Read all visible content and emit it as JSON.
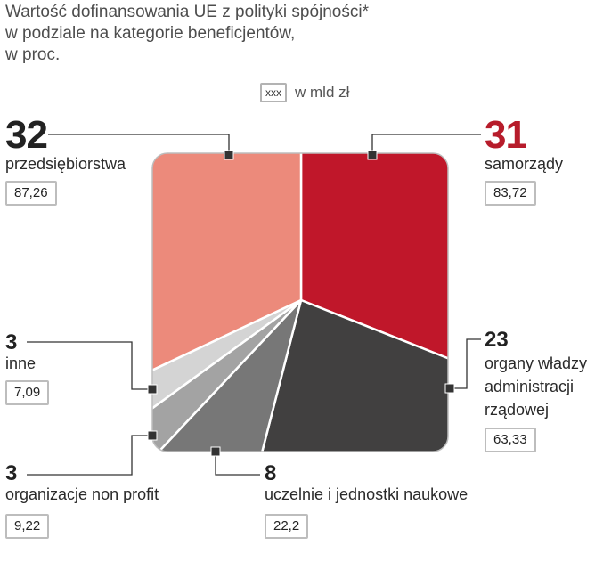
{
  "title_lines": [
    "Wartość dofinansowania UE z polityki spójności*",
    "w podziale na kategorie beneficjentów,",
    "w proc."
  ],
  "legend": {
    "box": "xxx",
    "label": "w mld zł"
  },
  "chart_data": {
    "type": "pie",
    "unit": "w proc.",
    "value_unit": "w mld zł",
    "slices": [
      {
        "label": "samorządy",
        "percent": 31,
        "value": "83,72",
        "color": "#c0172a"
      },
      {
        "label": "organy władzy administracji rządowej",
        "label_lines": [
          "organy władzy",
          "administracji",
          "rządowej"
        ],
        "percent": 23,
        "value": "63,33",
        "color": "#414040"
      },
      {
        "label": "uczelnie i jednostki naukowe",
        "percent": 8,
        "value": "22,2",
        "color": "#777777"
      },
      {
        "label": "organizacje non profit",
        "percent": 3,
        "value": "9,22",
        "color": "#a3a3a3"
      },
      {
        "label": "inne",
        "percent": 3,
        "value": "7,09",
        "color": "#d4d4d4"
      },
      {
        "label": "przedsiębiorstwa",
        "percent": 32,
        "value": "87,26",
        "color": "#ec8a7b"
      }
    ]
  }
}
